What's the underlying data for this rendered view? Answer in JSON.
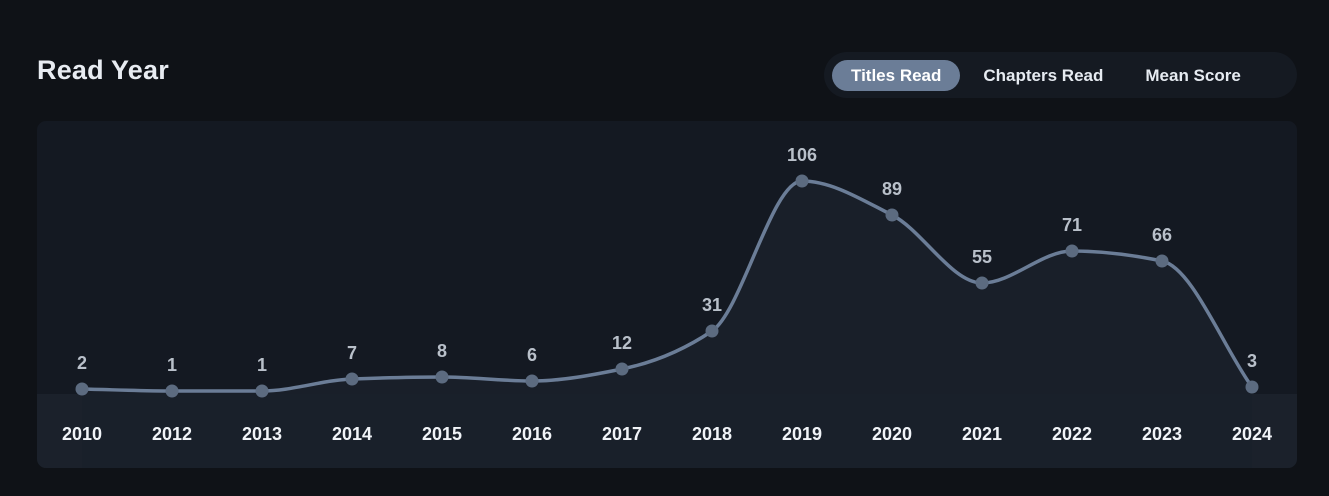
{
  "header": {
    "title": "Read Year"
  },
  "tabs": [
    {
      "label": "Titles Read",
      "active": true
    },
    {
      "label": "Chapters Read",
      "active": false
    },
    {
      "label": "Mean Score",
      "active": false
    }
  ],
  "colors": {
    "background": "#0f1217",
    "panel": "#141922",
    "axis_band": "#1b212b",
    "line": "#6b7d97",
    "active_tab": "#6b7d97"
  },
  "chart_data": {
    "type": "line",
    "title": "Read Year",
    "categories": [
      "2010",
      "2012",
      "2013",
      "2014",
      "2015",
      "2016",
      "2017",
      "2018",
      "2019",
      "2020",
      "2021",
      "2022",
      "2023",
      "2024"
    ],
    "series": [
      {
        "values": [
          2,
          1,
          1,
          7,
          8,
          6,
          12,
          31,
          106,
          89,
          55,
          71,
          66,
          3
        ]
      }
    ],
    "data_labels": true,
    "grid": false,
    "smooth": true,
    "ylim": [
      0,
      106
    ]
  }
}
